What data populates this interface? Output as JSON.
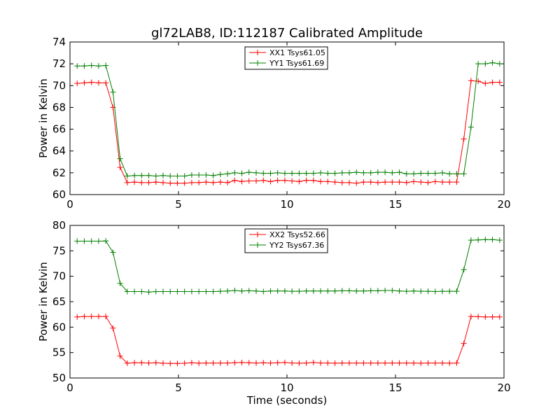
{
  "figure": {
    "title": "gl72LAB8, ID:112187 Calibrated Amplitude"
  },
  "chart_data": [
    {
      "type": "line",
      "title": "gl72LAB8, ID:112187 Calibrated Amplitude",
      "xlabel": "",
      "ylabel": "Power in Kelvin",
      "xlim": [
        0,
        20
      ],
      "ylim": [
        60,
        74
      ],
      "xticks": [
        0,
        5,
        10,
        15,
        20
      ],
      "yticks": [
        60,
        62,
        64,
        66,
        68,
        70,
        72,
        74
      ],
      "legend_position": "top-center",
      "grid": false,
      "x": [
        0.33,
        0.66,
        0.99,
        1.32,
        1.65,
        1.98,
        2.31,
        2.64,
        2.97,
        3.3,
        3.63,
        3.96,
        4.29,
        4.62,
        4.95,
        5.28,
        5.61,
        5.94,
        6.27,
        6.6,
        6.93,
        7.26,
        7.59,
        7.92,
        8.25,
        8.58,
        8.91,
        9.24,
        9.57,
        9.9,
        10.23,
        10.56,
        10.89,
        11.22,
        11.55,
        11.88,
        12.21,
        12.54,
        12.87,
        13.2,
        13.53,
        13.86,
        14.19,
        14.52,
        14.85,
        15.18,
        15.51,
        15.84,
        16.17,
        16.5,
        16.83,
        17.16,
        17.49,
        17.82,
        18.15,
        18.48,
        18.81,
        19.14,
        19.47,
        19.8
      ],
      "series": [
        {
          "name": "XX1 Tsys61.05",
          "color": "#ff0000",
          "values": [
            70.2,
            70.25,
            70.3,
            70.25,
            70.25,
            68.0,
            62.5,
            61.1,
            61.15,
            61.1,
            61.1,
            61.15,
            61.1,
            61.05,
            61.05,
            61.05,
            61.1,
            61.1,
            61.15,
            61.1,
            61.15,
            61.1,
            61.3,
            61.2,
            61.25,
            61.25,
            61.3,
            61.2,
            61.3,
            61.3,
            61.25,
            61.2,
            61.3,
            61.3,
            61.2,
            61.2,
            61.15,
            61.1,
            61.1,
            61.05,
            61.15,
            61.15,
            61.1,
            61.15,
            61.15,
            61.15,
            61.1,
            61.2,
            61.15,
            61.1,
            61.2,
            61.15,
            61.15,
            61.15,
            65.1,
            70.45,
            70.4,
            70.2,
            70.3,
            70.3
          ]
        },
        {
          "name": "YY1 Tsys61.69",
          "color": "#008000",
          "values": [
            71.8,
            71.8,
            71.85,
            71.8,
            71.85,
            69.4,
            63.3,
            61.7,
            61.75,
            61.75,
            61.75,
            61.7,
            61.75,
            61.7,
            61.7,
            61.7,
            61.8,
            61.8,
            61.8,
            61.75,
            61.85,
            61.9,
            62.0,
            61.95,
            62.05,
            62.0,
            61.95,
            61.95,
            62.0,
            61.95,
            61.95,
            61.95,
            61.95,
            61.95,
            62.0,
            61.95,
            61.95,
            62.0,
            62.0,
            62.05,
            62.0,
            62.0,
            62.05,
            62.05,
            62.0,
            62.05,
            61.9,
            61.9,
            61.95,
            61.95,
            61.95,
            62.0,
            61.9,
            61.9,
            61.9,
            66.2,
            72.0,
            72.0,
            72.1,
            72.0
          ]
        }
      ]
    },
    {
      "type": "line",
      "title": "",
      "xlabel": "Time (seconds)",
      "ylabel": "Power in Kelvin",
      "xlim": [
        0,
        20
      ],
      "ylim": [
        50,
        80
      ],
      "xticks": [
        0,
        5,
        10,
        15,
        20
      ],
      "yticks": [
        50,
        55,
        60,
        65,
        70,
        75,
        80
      ],
      "legend_position": "top-center",
      "grid": false,
      "x": [
        0.33,
        0.66,
        0.99,
        1.32,
        1.65,
        1.98,
        2.31,
        2.64,
        2.97,
        3.3,
        3.63,
        3.96,
        4.29,
        4.62,
        4.95,
        5.28,
        5.61,
        5.94,
        6.27,
        6.6,
        6.93,
        7.26,
        7.59,
        7.92,
        8.25,
        8.58,
        8.91,
        9.24,
        9.57,
        9.9,
        10.23,
        10.56,
        10.89,
        11.22,
        11.55,
        11.88,
        12.21,
        12.54,
        12.87,
        13.2,
        13.53,
        13.86,
        14.19,
        14.52,
        14.85,
        15.18,
        15.51,
        15.84,
        16.17,
        16.5,
        16.83,
        17.16,
        17.49,
        17.82,
        18.15,
        18.48,
        18.81,
        19.14,
        19.47,
        19.8
      ],
      "series": [
        {
          "name": "XX2 Tsys52.66",
          "color": "#ff0000",
          "values": [
            62.0,
            62.1,
            62.1,
            62.1,
            62.1,
            59.8,
            54.3,
            52.9,
            53.0,
            53.0,
            52.95,
            53.0,
            52.9,
            52.85,
            52.85,
            52.9,
            53.0,
            52.9,
            52.95,
            52.95,
            52.95,
            52.95,
            53.0,
            53.05,
            53.0,
            52.95,
            53.0,
            52.95,
            53.0,
            53.05,
            52.95,
            52.9,
            52.95,
            53.05,
            52.95,
            52.95,
            52.9,
            52.95,
            52.95,
            52.95,
            52.95,
            52.95,
            52.95,
            52.95,
            52.95,
            52.95,
            52.95,
            52.95,
            52.9,
            52.95,
            52.95,
            52.95,
            52.9,
            52.95,
            56.8,
            62.1,
            62.05,
            62.0,
            62.0,
            62.0
          ]
        },
        {
          "name": "YY2 Tsys67.36",
          "color": "#008000",
          "values": [
            76.9,
            76.9,
            76.9,
            76.9,
            76.95,
            74.7,
            68.6,
            67.0,
            67.0,
            67.0,
            66.9,
            67.0,
            67.0,
            67.0,
            67.0,
            67.0,
            67.0,
            67.0,
            67.0,
            67.0,
            67.05,
            67.1,
            67.2,
            67.1,
            67.15,
            67.1,
            67.0,
            67.1,
            67.1,
            67.1,
            67.05,
            67.05,
            67.1,
            67.1,
            67.1,
            67.1,
            67.1,
            67.15,
            67.15,
            67.1,
            67.1,
            67.15,
            67.15,
            67.2,
            67.2,
            67.1,
            67.05,
            67.1,
            67.05,
            67.05,
            67.0,
            67.05,
            67.05,
            67.05,
            71.3,
            77.1,
            77.15,
            77.2,
            77.2,
            77.1
          ]
        }
      ]
    }
  ]
}
